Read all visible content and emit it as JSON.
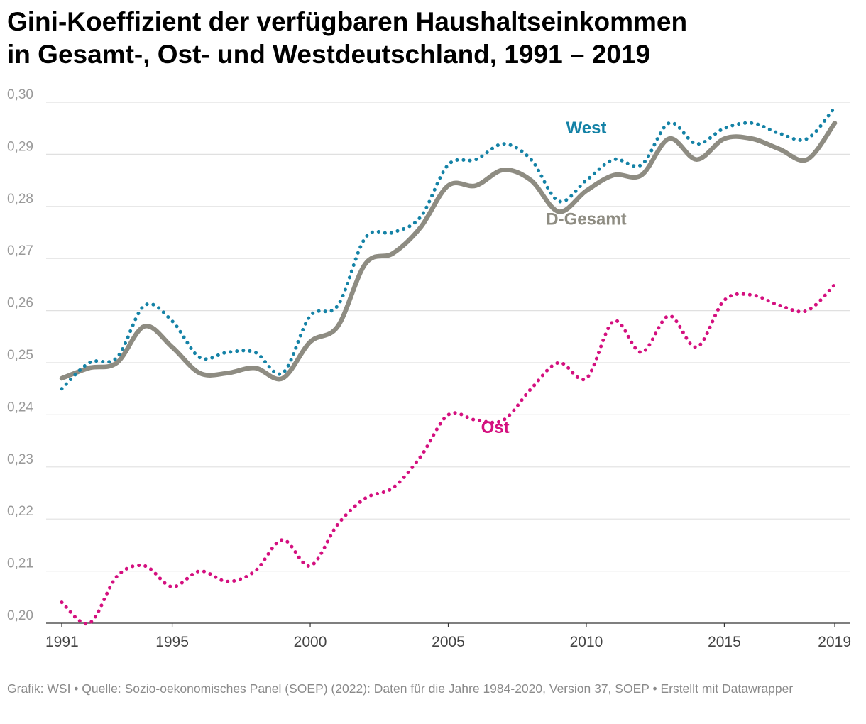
{
  "title": {
    "line1": "Gini-Koeffizient der verfügbaren Haushaltseinkommen",
    "line2": "in Gesamt-, Ost- und Westdeutschland, 1991 – 2019"
  },
  "footer": "Grafik: WSI • Quelle: Sozio-oekonomisches Panel (SOEP) (2022): Daten für die Jahre 1984-2020, Version 37, SOEP • Erstellt mit Datawrapper",
  "chart_data": {
    "type": "line",
    "x": [
      1991,
      1992,
      1993,
      1994,
      1995,
      1996,
      1997,
      1998,
      1999,
      2000,
      2001,
      2002,
      2003,
      2004,
      2005,
      2006,
      2007,
      2008,
      2009,
      2010,
      2011,
      2012,
      2013,
      2014,
      2015,
      2016,
      2017,
      2018,
      2019
    ],
    "xlim": [
      1991,
      2019
    ],
    "ylim": [
      0.2,
      0.3
    ],
    "xticks": [
      {
        "value": 1991,
        "label": "1991"
      },
      {
        "value": 1995,
        "label": "1995"
      },
      {
        "value": 2000,
        "label": "2000"
      },
      {
        "value": 2005,
        "label": "2005"
      },
      {
        "value": 2010,
        "label": "2010"
      },
      {
        "value": 2015,
        "label": "2015"
      },
      {
        "value": 2019,
        "label": "2019"
      }
    ],
    "yticks": [
      {
        "value": 0.3,
        "label": "0,30"
      },
      {
        "value": 0.29,
        "label": "0,29"
      },
      {
        "value": 0.28,
        "label": "0,28"
      },
      {
        "value": 0.27,
        "label": "0,27"
      },
      {
        "value": 0.26,
        "label": "0,26"
      },
      {
        "value": 0.25,
        "label": "0,25"
      },
      {
        "value": 0.24,
        "label": "0,24"
      },
      {
        "value": 0.23,
        "label": "0,23"
      },
      {
        "value": 0.22,
        "label": "0,22"
      },
      {
        "value": 0.21,
        "label": "0,21"
      },
      {
        "value": 0.2,
        "label": "0,20"
      }
    ],
    "grid": "horizontal",
    "series": [
      {
        "name": "West",
        "color": "#1482a6",
        "style": "dotted",
        "values": [
          0.245,
          0.25,
          0.251,
          0.261,
          0.258,
          0.251,
          0.252,
          0.252,
          0.248,
          0.259,
          0.261,
          0.274,
          0.275,
          0.278,
          0.288,
          0.289,
          0.292,
          0.289,
          0.281,
          0.285,
          0.289,
          0.288,
          0.296,
          0.292,
          0.295,
          0.296,
          0.294,
          0.293,
          0.299
        ],
        "label_at": [
          2010,
          0.294
        ]
      },
      {
        "name": "D-Gesamt",
        "color": "#8e8c82",
        "style": "solid",
        "values": [
          0.247,
          0.249,
          0.25,
          0.257,
          0.253,
          0.248,
          0.248,
          0.249,
          0.247,
          0.254,
          0.257,
          0.269,
          0.271,
          0.276,
          0.284,
          0.284,
          0.287,
          0.285,
          0.279,
          0.283,
          0.286,
          0.286,
          0.293,
          0.289,
          0.293,
          0.293,
          0.291,
          0.289,
          0.296
        ],
        "label_at": [
          2010,
          0.2765
        ]
      },
      {
        "name": "Ost",
        "color": "#d4107f",
        "style": "dotted",
        "values": [
          0.204,
          0.2,
          0.209,
          0.211,
          0.207,
          0.21,
          0.208,
          0.21,
          0.216,
          0.211,
          0.219,
          0.224,
          0.226,
          0.232,
          0.24,
          0.239,
          0.239,
          0.245,
          0.25,
          0.247,
          0.258,
          0.252,
          0.259,
          0.253,
          0.262,
          0.263,
          0.261,
          0.26,
          0.265
        ],
        "label_at": [
          2006.7,
          0.2365
        ]
      }
    ]
  }
}
